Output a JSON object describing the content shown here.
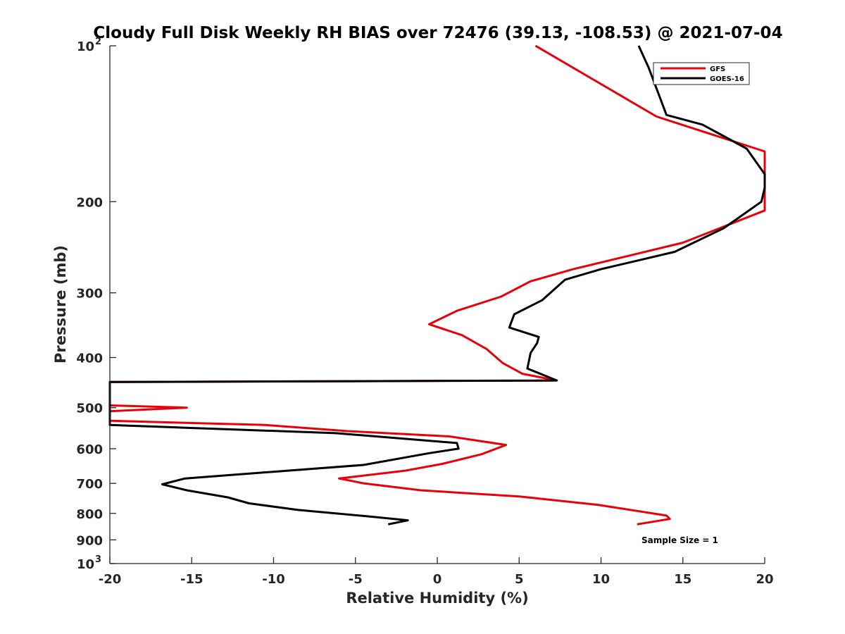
{
  "chart_data": {
    "type": "line",
    "title": "Cloudy Full Disk Weekly RH BIAS over 72476 (39.13, -108.53) @ 2021-07-04",
    "xlabel": "Relative Humidity (%)",
    "ylabel": "Pressure (mb)",
    "xlim": [
      -20,
      20
    ],
    "ylim": [
      100,
      1000
    ],
    "y_scale": "log",
    "y_reversed": true,
    "grid": false,
    "legend_position": "top-right",
    "x_ticks": [
      "-20",
      "-15",
      "-10",
      "-5",
      "0",
      "5",
      "10",
      "15",
      "20"
    ],
    "y_ticks": [
      {
        "value": 100,
        "base": "10",
        "exp": "2"
      },
      {
        "value": 200,
        "base": "200",
        "exp": ""
      },
      {
        "value": 300,
        "base": "300",
        "exp": ""
      },
      {
        "value": 400,
        "base": "400",
        "exp": ""
      },
      {
        "value": 500,
        "base": "500",
        "exp": ""
      },
      {
        "value": 600,
        "base": "600",
        "exp": ""
      },
      {
        "value": 700,
        "base": "700",
        "exp": ""
      },
      {
        "value": 800,
        "base": "800",
        "exp": ""
      },
      {
        "value": 900,
        "base": "900",
        "exp": ""
      },
      {
        "value": 1000,
        "base": "10",
        "exp": "3"
      }
    ],
    "series": [
      {
        "name": "GFS",
        "color": "#e8000b",
        "points": [
          [
            6,
            100
          ],
          [
            13.4,
            137
          ],
          [
            20,
            160
          ],
          [
            20,
            208
          ],
          [
            15,
            240
          ],
          [
            8.3,
            270
          ],
          [
            5.7,
            285
          ],
          [
            3.9,
            305
          ],
          [
            1.2,
            325
          ],
          [
            -0.5,
            345
          ],
          [
            1.5,
            362
          ],
          [
            3,
            385
          ],
          [
            4,
            410
          ],
          [
            5.2,
            430
          ],
          [
            7.3,
            443
          ],
          [
            -20,
            446
          ],
          [
            -20,
            495
          ],
          [
            -15.3,
            500
          ],
          [
            -20,
            508
          ],
          [
            -20,
            530
          ],
          [
            -10.5,
            540
          ],
          [
            -5.4,
            555
          ],
          [
            0.7,
            568
          ],
          [
            4.2,
            590
          ],
          [
            2.7,
            615
          ],
          [
            0.3,
            642
          ],
          [
            -2,
            662
          ],
          [
            -6,
            685
          ],
          [
            -4.5,
            700
          ],
          [
            -1,
            722
          ],
          [
            5,
            742
          ],
          [
            9.8,
            770
          ],
          [
            14,
            808
          ],
          [
            14.2,
            820
          ],
          [
            12.2,
            840
          ]
        ]
      },
      {
        "name": "GOES-16",
        "color": "#000000",
        "points": [
          [
            12.3,
            100
          ],
          [
            12.9,
            110
          ],
          [
            14,
            136
          ],
          [
            16.2,
            142
          ],
          [
            18.9,
            158
          ],
          [
            20,
            177
          ],
          [
            20,
            188
          ],
          [
            19.8,
            200
          ],
          [
            17.5,
            225
          ],
          [
            14.5,
            250
          ],
          [
            10,
            270
          ],
          [
            7.8,
            283
          ],
          [
            6.4,
            310
          ],
          [
            4.7,
            330
          ],
          [
            4.4,
            350
          ],
          [
            6.2,
            365
          ],
          [
            6.1,
            375
          ],
          [
            5.7,
            392
          ],
          [
            5.5,
            420
          ],
          [
            7.3,
            443
          ],
          [
            -20,
            446
          ],
          [
            -20,
            540
          ],
          [
            -6.2,
            560
          ],
          [
            1.2,
            585
          ],
          [
            1.3,
            600
          ],
          [
            -0.5,
            612
          ],
          [
            -4.5,
            645
          ],
          [
            -15.4,
            685
          ],
          [
            -16.8,
            703
          ],
          [
            -15.3,
            722
          ],
          [
            -12.8,
            745
          ],
          [
            -11.5,
            765
          ],
          [
            -8.5,
            788
          ],
          [
            -4,
            812
          ],
          [
            -1.8,
            825
          ],
          [
            -3,
            840
          ]
        ]
      }
    ],
    "annotations": [
      "Sample Size = 1"
    ]
  }
}
